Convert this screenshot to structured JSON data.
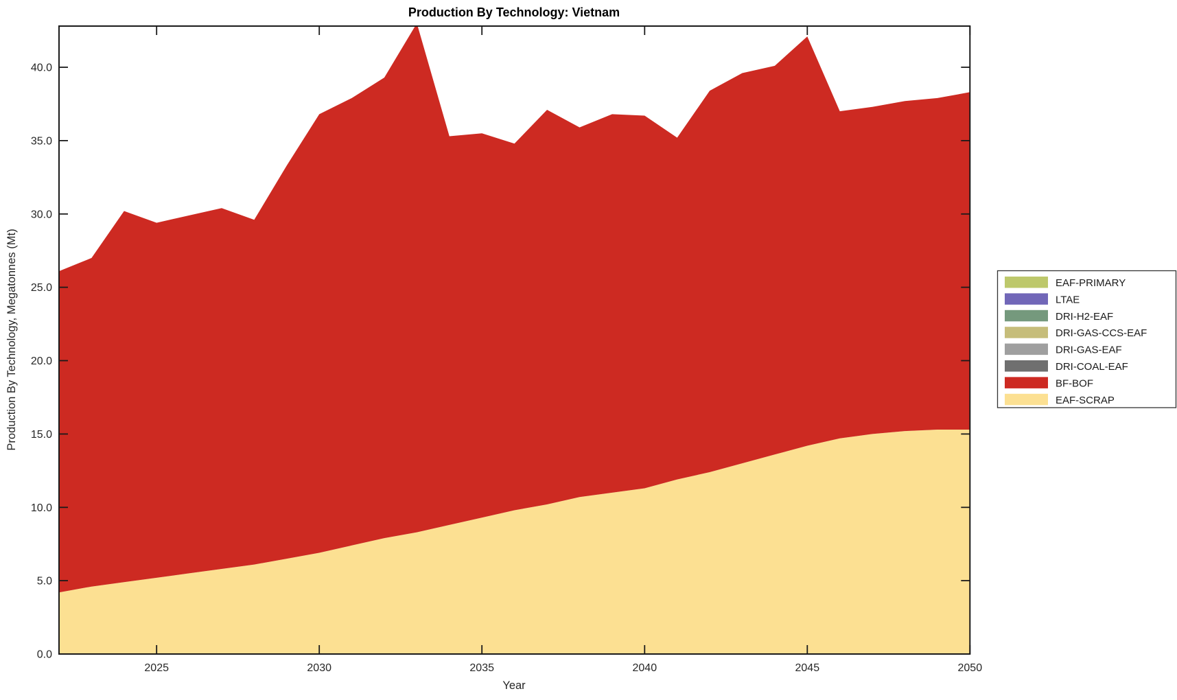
{
  "chart": {
    "title": "Production By Technology: Vietnam",
    "xlabel": "Year",
    "ylabel": "Production By Technology, Megatonnes (Mt)"
  },
  "chart_data": {
    "type": "area",
    "stacked": true,
    "title": "Production By Technology: Vietnam",
    "xlabel": "Year",
    "ylabel": "Production By Technology, Megatonnes (Mt)",
    "xlim": [
      2022,
      2050
    ],
    "ylim": [
      0,
      42.8
    ],
    "grid": false,
    "legend_position": "right-outside",
    "x": [
      2022,
      2023,
      2024,
      2025,
      2026,
      2027,
      2028,
      2029,
      2030,
      2031,
      2032,
      2033,
      2034,
      2035,
      2036,
      2037,
      2038,
      2039,
      2040,
      2041,
      2042,
      2043,
      2044,
      2045,
      2046,
      2047,
      2048,
      2049,
      2050
    ],
    "x_ticks": [
      2025,
      2030,
      2035,
      2040,
      2045,
      2050
    ],
    "y_ticks": [
      "0.0",
      "5.0",
      "10.0",
      "15.0",
      "20.0",
      "25.0",
      "30.0",
      "35.0",
      "40.0"
    ],
    "axis_color": "#1a1a1a",
    "series": [
      {
        "name": "EAF-PRIMARY",
        "color": "#bdc86b",
        "values": [
          0,
          0,
          0,
          0,
          0,
          0,
          0,
          0,
          0,
          0,
          0,
          0,
          0,
          0,
          0,
          0,
          0,
          0,
          0,
          0,
          0,
          0,
          0,
          0,
          0,
          0,
          0,
          0,
          0
        ]
      },
      {
        "name": "LTAE",
        "color": "#7167b8",
        "values": [
          0,
          0,
          0,
          0,
          0,
          0,
          0,
          0,
          0,
          0,
          0,
          0,
          0,
          0,
          0,
          0,
          0,
          0,
          0,
          0,
          0,
          0,
          0,
          0,
          0,
          0,
          0,
          0,
          0
        ]
      },
      {
        "name": "DRI-H2-EAF",
        "color": "#75997d",
        "values": [
          0,
          0,
          0,
          0,
          0,
          0,
          0,
          0,
          0,
          0,
          0,
          0,
          0,
          0,
          0,
          0,
          0,
          0,
          0,
          0,
          0,
          0,
          0,
          0,
          0,
          0,
          0,
          0,
          0
        ]
      },
      {
        "name": "DRI-GAS-CCS-EAF",
        "color": "#c6bd7a",
        "values": [
          0,
          0,
          0,
          0,
          0,
          0,
          0,
          0,
          0,
          0,
          0,
          0,
          0,
          0,
          0,
          0,
          0,
          0,
          0,
          0,
          0,
          0,
          0,
          0,
          0,
          0,
          0,
          0,
          0
        ]
      },
      {
        "name": "DRI-GAS-EAF",
        "color": "#9f9f9f",
        "values": [
          0,
          0,
          0,
          0,
          0,
          0,
          0,
          0,
          0,
          0,
          0,
          0,
          0,
          0,
          0,
          0,
          0,
          0,
          0,
          0,
          0,
          0,
          0,
          0,
          0,
          0,
          0,
          0,
          0
        ]
      },
      {
        "name": "DRI-COAL-EAF",
        "color": "#6f6f6f",
        "values": [
          0,
          0,
          0,
          0,
          0,
          0,
          0,
          0,
          0,
          0,
          0,
          0,
          0,
          0,
          0,
          0,
          0,
          0,
          0,
          0,
          0,
          0,
          0,
          0,
          0,
          0,
          0,
          0,
          0
        ]
      },
      {
        "name": "BF-BOF",
        "color": "#cd2a22",
        "values": [
          21.9,
          22.4,
          25.3,
          24.2,
          24.4,
          24.6,
          23.5,
          26.8,
          29.9,
          30.5,
          31.4,
          34.7,
          26.5,
          26.2,
          25.0,
          26.9,
          25.2,
          25.8,
          25.4,
          23.3,
          26.0,
          26.6,
          26.5,
          27.9,
          22.3,
          22.3,
          22.5,
          22.6,
          23.0
        ]
      },
      {
        "name": "EAF-SCRAP",
        "color": "#fce092",
        "values": [
          4.2,
          4.6,
          4.9,
          5.2,
          5.5,
          5.8,
          6.1,
          6.5,
          6.9,
          7.4,
          7.9,
          8.3,
          8.8,
          9.3,
          9.8,
          10.2,
          10.7,
          11.0,
          11.3,
          11.9,
          12.4,
          13.0,
          13.6,
          14.2,
          14.7,
          15.0,
          15.2,
          15.3,
          15.3
        ]
      }
    ],
    "totals_note": "stack bottom-to-top is reverse of series order (EAF-SCRAP at bottom, BF-BOF above it)"
  }
}
